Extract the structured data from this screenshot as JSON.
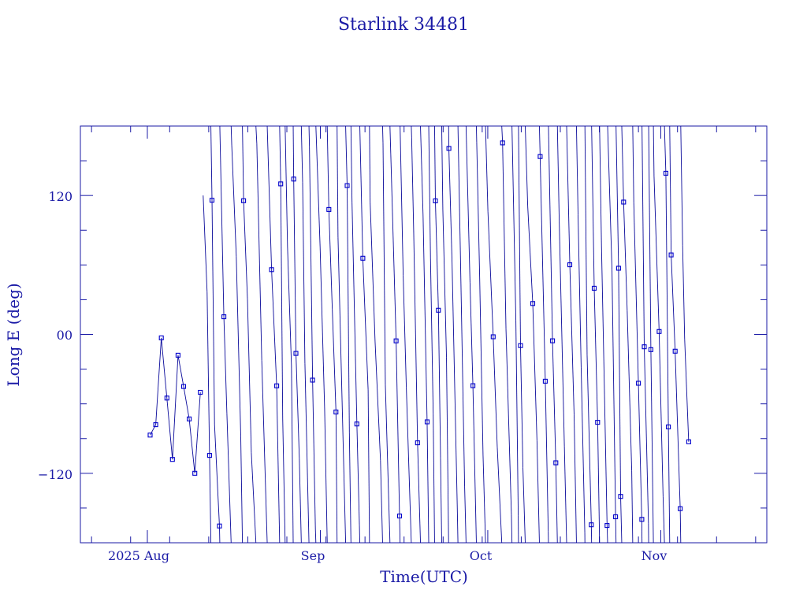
{
  "chart_data": {
    "type": "line",
    "title": "Starlink 34481",
    "xlabel": "Time(UTC)",
    "ylabel": "Long E (deg)",
    "x_ticks": [
      "2025 Aug",
      "Sep",
      "Oct",
      "Nov"
    ],
    "x_tick_dates": [
      "2025-08-01",
      "2025-09-01",
      "2025-10-01",
      "2025-11-01"
    ],
    "xlim": [
      "2025-07-20",
      "2025-11-20"
    ],
    "y_ticks": [
      "−120",
      "00",
      "120"
    ],
    "y_tick_values": [
      -120,
      0,
      120
    ],
    "ylim": [
      -180,
      180
    ],
    "grid": false,
    "series": [
      {
        "x": [
          "2025-08-01",
          "2025-08-02",
          "2025-08-03",
          "2025-08-04",
          "2025-08-05",
          "2025-08-06",
          "2025-08-07",
          "2025-08-08",
          "2025-08-09",
          "2025-08-10"
        ],
        "y": [
          -87,
          -78,
          -3,
          -55,
          -108,
          -18,
          -45,
          -73,
          -120,
          -50
        ]
      }
    ]
  }
}
